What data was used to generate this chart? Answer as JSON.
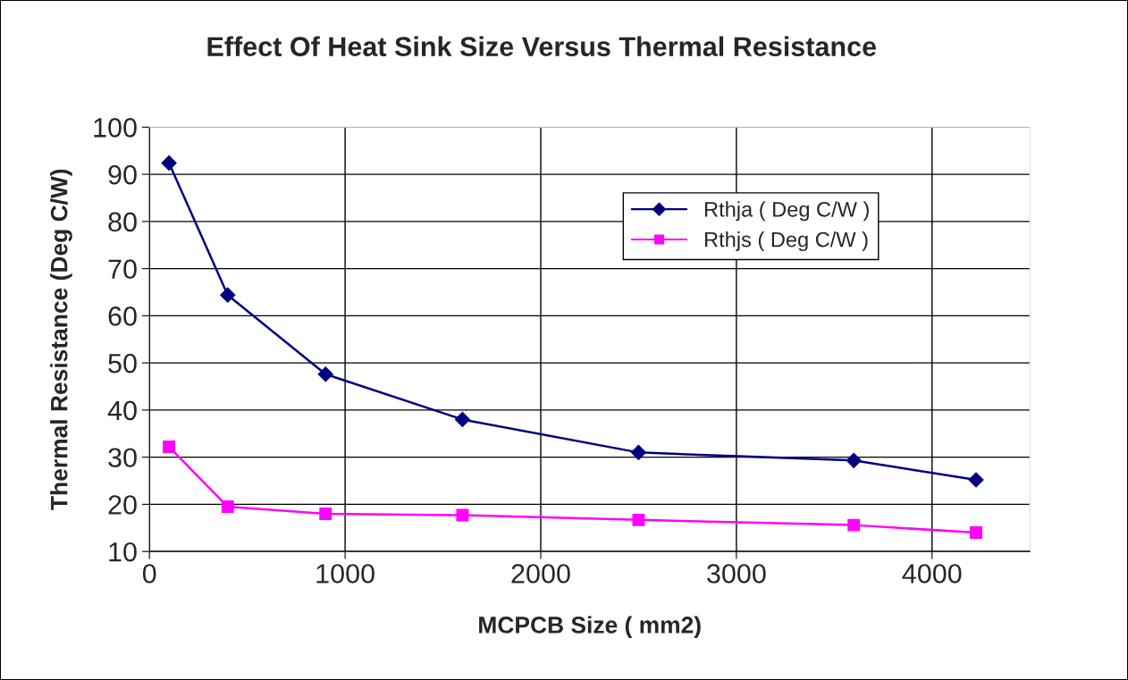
{
  "chart_data": {
    "type": "line",
    "title": "Effect Of Heat Sink Size Versus Thermal Resistance",
    "xlabel": "MCPCB Size ( mm2)",
    "ylabel": "Thermal Resistance (Deg C/W)",
    "x": [
      100,
      400,
      900,
      1600,
      2500,
      3600,
      4225
    ],
    "series": [
      {
        "name": "Rthja ( Deg C/W )",
        "color": "#000080",
        "marker": "diamond",
        "values": [
          92.4,
          64.4,
          47.6,
          38.0,
          31.0,
          29.3,
          25.2
        ]
      },
      {
        "name": "Rthjs ( Deg C/W )",
        "color": "#ff00ff",
        "marker": "square",
        "values": [
          32.2,
          19.5,
          18.0,
          17.7,
          16.7,
          15.6,
          14.0
        ]
      }
    ],
    "xlim": [
      0,
      4500
    ],
    "xticks": [
      0,
      1000,
      2000,
      3000,
      4000
    ],
    "ylim": [
      10,
      100
    ],
    "yticks": [
      10,
      20,
      30,
      40,
      50,
      60,
      70,
      80,
      90,
      100
    ],
    "grid": true,
    "legend": "top right",
    "line_style": "solid"
  }
}
